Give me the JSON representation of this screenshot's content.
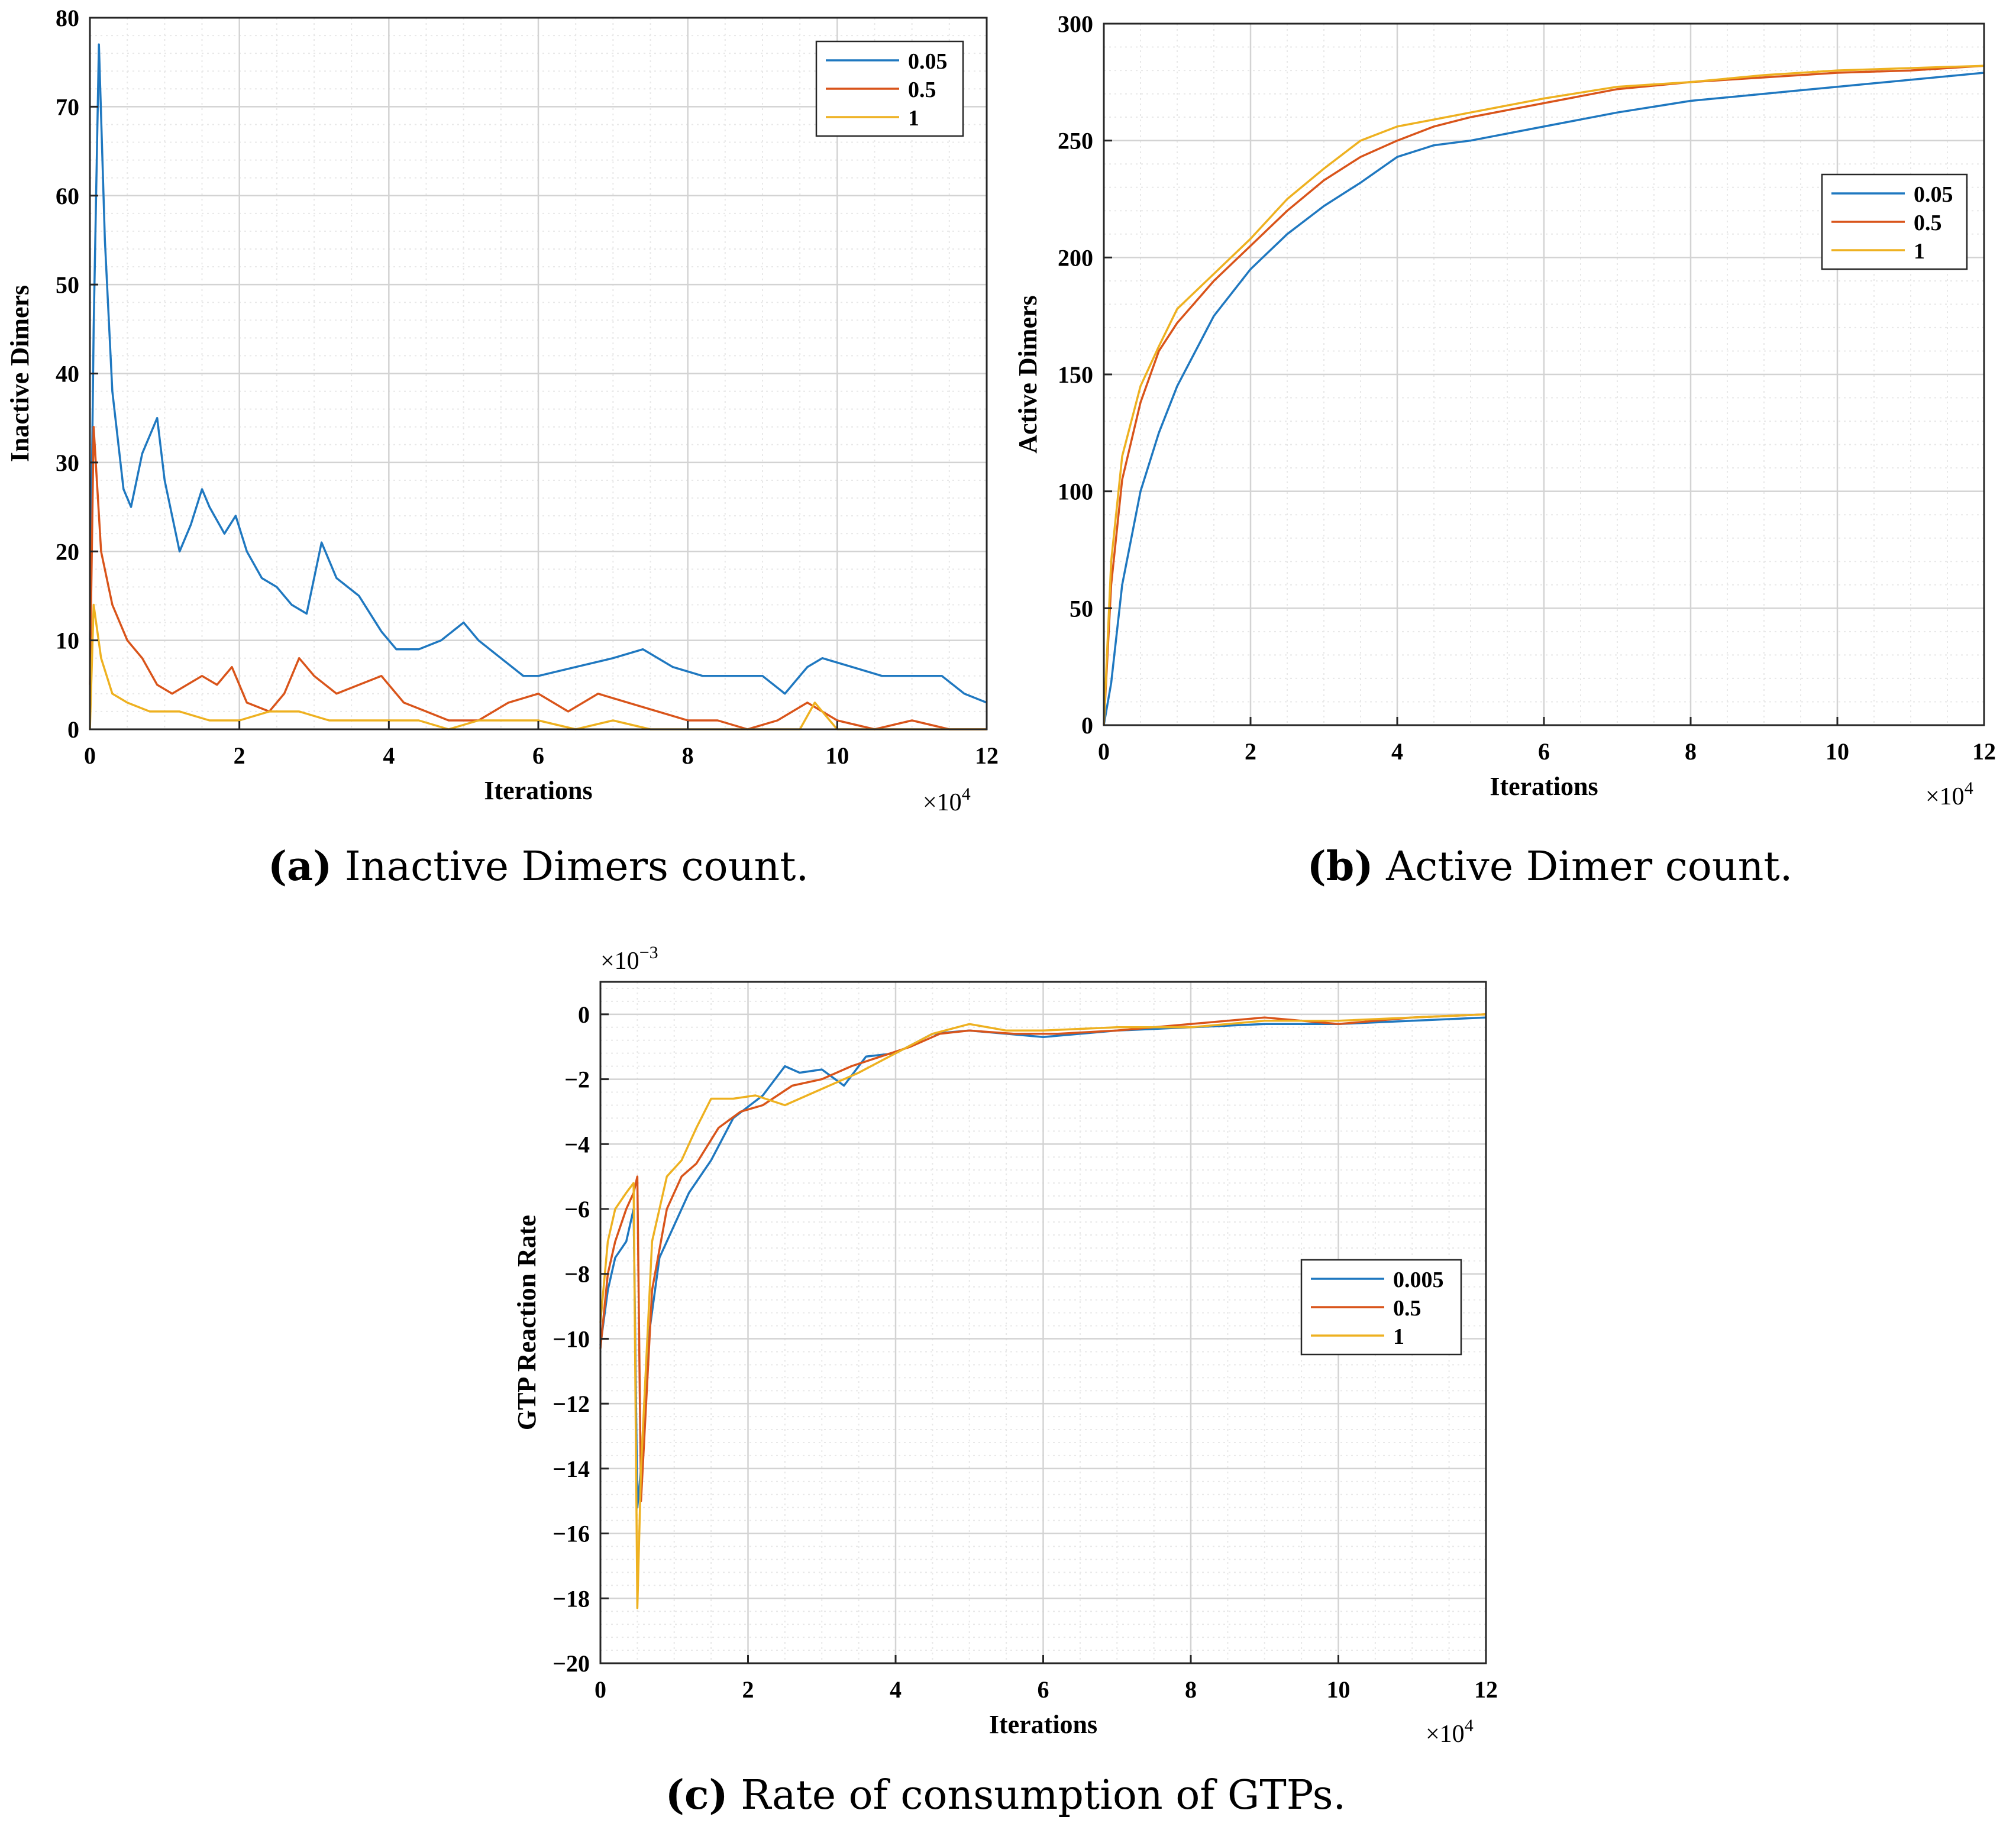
{
  "colors": {
    "series1": "#1f78c0",
    "series2": "#d9541a",
    "series3": "#eeb120",
    "grid_major": "#d3d3d3",
    "grid_minor": "#e8e8e8"
  },
  "captions": {
    "a": {
      "tag": "(a)",
      "text": "Inactive Dimers count."
    },
    "b": {
      "tag": "(b)",
      "text": "Active Dimer count."
    },
    "c": {
      "tag": "(c)",
      "text": "Rate of consumption of GTPs."
    }
  },
  "chart_data": [
    {
      "id": "a",
      "type": "line",
      "xlabel": "Iterations",
      "ylabel": "Inactive Dimers",
      "xlim": [
        0,
        12
      ],
      "ylim": [
        0,
        80
      ],
      "xticks": [
        0,
        2,
        4,
        6,
        8,
        10,
        12
      ],
      "yticks": [
        0,
        10,
        20,
        30,
        40,
        50,
        60,
        70,
        80
      ],
      "x_exponent": "4",
      "legend_position": "top-right",
      "grid": true,
      "series": [
        {
          "name": "0.05",
          "x": [
            0,
            0.05,
            0.12,
            0.2,
            0.3,
            0.45,
            0.55,
            0.7,
            0.9,
            1.0,
            1.2,
            1.35,
            1.5,
            1.6,
            1.8,
            1.95,
            2.1,
            2.3,
            2.5,
            2.7,
            2.9,
            3.1,
            3.3,
            3.6,
            3.9,
            4.1,
            4.4,
            4.7,
            5.0,
            5.2,
            5.5,
            5.8,
            6.0,
            6.5,
            7.0,
            7.4,
            7.8,
            8.2,
            8.6,
            9.0,
            9.3,
            9.6,
            9.8,
            10.2,
            10.6,
            11.0,
            11.4,
            11.7,
            12.0
          ],
          "values": [
            10,
            45,
            77,
            55,
            38,
            27,
            25,
            31,
            35,
            28,
            20,
            23,
            27,
            25,
            22,
            24,
            20,
            17,
            16,
            14,
            13,
            21,
            17,
            15,
            11,
            9,
            9,
            10,
            12,
            10,
            8,
            6,
            6,
            7,
            8,
            9,
            7,
            6,
            6,
            6,
            4,
            7,
            8,
            7,
            6,
            6,
            6,
            4,
            3
          ]
        },
        {
          "name": "0.5",
          "x": [
            0,
            0.05,
            0.15,
            0.3,
            0.5,
            0.7,
            0.9,
            1.1,
            1.3,
            1.5,
            1.7,
            1.9,
            2.1,
            2.4,
            2.6,
            2.8,
            3.0,
            3.3,
            3.6,
            3.9,
            4.2,
            4.5,
            4.8,
            5.2,
            5.6,
            6.0,
            6.4,
            6.8,
            7.2,
            7.6,
            8.0,
            8.4,
            8.8,
            9.2,
            9.6,
            10.0,
            10.5,
            11.0,
            11.5,
            12.0
          ],
          "values": [
            5,
            34,
            20,
            14,
            10,
            8,
            5,
            4,
            5,
            6,
            5,
            7,
            3,
            2,
            4,
            8,
            6,
            4,
            5,
            6,
            3,
            2,
            1,
            1,
            3,
            4,
            2,
            4,
            3,
            2,
            1,
            1,
            0,
            1,
            3,
            1,
            0,
            1,
            0,
            0
          ]
        },
        {
          "name": "1",
          "x": [
            0,
            0.05,
            0.15,
            0.3,
            0.5,
            0.8,
            1.2,
            1.6,
            2.0,
            2.4,
            2.8,
            3.2,
            3.6,
            4.0,
            4.4,
            4.8,
            5.2,
            5.6,
            6.0,
            6.5,
            7.0,
            7.5,
            8.0,
            9.0,
            9.5,
            9.7,
            10.0,
            11.0,
            12.0
          ],
          "values": [
            0,
            14,
            8,
            4,
            3,
            2,
            2,
            1,
            1,
            2,
            2,
            1,
            1,
            1,
            1,
            0,
            1,
            1,
            1,
            0,
            1,
            0,
            0,
            0,
            0,
            3,
            0,
            0,
            0
          ]
        }
      ]
    },
    {
      "id": "b",
      "type": "line",
      "xlabel": "Iterations",
      "ylabel": "Active Dimers",
      "xlim": [
        0,
        12
      ],
      "ylim": [
        0,
        300
      ],
      "xticks": [
        0,
        2,
        4,
        6,
        8,
        10,
        12
      ],
      "yticks": [
        0,
        50,
        100,
        150,
        200,
        250,
        300
      ],
      "x_exponent": "4",
      "legend_position": "right",
      "grid": true,
      "series": [
        {
          "name": "0.05",
          "x": [
            0,
            0.1,
            0.25,
            0.5,
            0.75,
            1.0,
            1.5,
            2.0,
            2.5,
            3.0,
            3.5,
            4.0,
            4.5,
            5.0,
            6.0,
            7.0,
            8.0,
            9.0,
            10.0,
            11.0,
            12.0
          ],
          "values": [
            0,
            18,
            60,
            100,
            125,
            145,
            175,
            195,
            210,
            222,
            232,
            243,
            248,
            250,
            256,
            262,
            267,
            270,
            273,
            276,
            279
          ]
        },
        {
          "name": "0.5",
          "x": [
            0,
            0.1,
            0.25,
            0.5,
            0.75,
            1.0,
            1.5,
            2.0,
            2.5,
            3.0,
            3.5,
            4.0,
            4.5,
            5.0,
            6.0,
            7.0,
            8.0,
            9.0,
            10.0,
            11.0,
            12.0
          ],
          "values": [
            0,
            60,
            105,
            138,
            160,
            172,
            190,
            205,
            220,
            233,
            243,
            250,
            256,
            260,
            266,
            272,
            275,
            277,
            279,
            280,
            282
          ]
        },
        {
          "name": "1",
          "x": [
            0,
            0.1,
            0.25,
            0.5,
            0.75,
            1.0,
            1.5,
            2.0,
            2.5,
            3.0,
            3.5,
            4.0,
            4.5,
            5.0,
            6.0,
            7.0,
            8.0,
            9.0,
            10.0,
            11.0,
            12.0
          ],
          "values": [
            0,
            70,
            115,
            145,
            162,
            178,
            193,
            208,
            225,
            238,
            250,
            256,
            259,
            262,
            268,
            273,
            275,
            278,
            280,
            281,
            282
          ]
        }
      ]
    },
    {
      "id": "c",
      "type": "line",
      "xlabel": "Iterations",
      "ylabel": "GTP Reaction Rate",
      "xlim": [
        0,
        12
      ],
      "ylim": [
        -20,
        1
      ],
      "xticks": [
        0,
        2,
        4,
        6,
        8,
        10,
        12
      ],
      "yticks": [
        0,
        -2,
        -4,
        -6,
        -8,
        -10,
        -12,
        -14,
        -16,
        -18,
        -20
      ],
      "x_exponent": "4",
      "y_exponent": "-3",
      "legend_position": "right",
      "grid": true,
      "series": [
        {
          "name": "0.005",
          "x": [
            0,
            0.1,
            0.2,
            0.35,
            0.45,
            0.5,
            0.55,
            0.65,
            0.8,
            1.0,
            1.2,
            1.5,
            1.8,
            2.2,
            2.5,
            2.7,
            3.0,
            3.3,
            3.6,
            4.0,
            4.5,
            5.0,
            5.5,
            6.0,
            7.0,
            8.0,
            9.0,
            10.0,
            11.0,
            12.0
          ],
          "values": [
            -10.2,
            -8.5,
            -7.5,
            -7.0,
            -6.0,
            -15.2,
            -14.0,
            -10.0,
            -7.5,
            -6.5,
            -5.5,
            -4.5,
            -3.2,
            -2.5,
            -1.6,
            -1.8,
            -1.7,
            -2.2,
            -1.3,
            -1.2,
            -0.6,
            -0.5,
            -0.6,
            -0.7,
            -0.5,
            -0.4,
            -0.3,
            -0.3,
            -0.2,
            -0.1
          ]
        },
        {
          "name": "0.5",
          "x": [
            0,
            0.1,
            0.2,
            0.35,
            0.45,
            0.5,
            0.55,
            0.7,
            0.9,
            1.1,
            1.3,
            1.6,
            1.9,
            2.2,
            2.6,
            3.0,
            3.4,
            3.8,
            4.2,
            4.6,
            5.0,
            5.6,
            6.2,
            7.0,
            8.0,
            9.0,
            10.0,
            11.0,
            12.0
          ],
          "values": [
            -10.3,
            -8.0,
            -7.0,
            -6.0,
            -5.5,
            -5.0,
            -15.0,
            -8.5,
            -6.0,
            -5.0,
            -4.6,
            -3.5,
            -3.0,
            -2.8,
            -2.2,
            -2.0,
            -1.6,
            -1.3,
            -1.0,
            -0.6,
            -0.5,
            -0.6,
            -0.6,
            -0.5,
            -0.3,
            -0.1,
            -0.3,
            -0.1,
            0.0
          ]
        },
        {
          "name": "1",
          "x": [
            0,
            0.1,
            0.2,
            0.35,
            0.45,
            0.5,
            0.55,
            0.7,
            0.9,
            1.1,
            1.3,
            1.5,
            1.8,
            2.1,
            2.5,
            3.0,
            3.5,
            4.0,
            4.5,
            5.0,
            5.5,
            6.0,
            7.0,
            8.0,
            9.0,
            10.0,
            11.0,
            12.0
          ],
          "values": [
            -9.5,
            -7.0,
            -6.0,
            -5.5,
            -5.2,
            -18.3,
            -14.0,
            -7.0,
            -5.0,
            -4.5,
            -3.5,
            -2.6,
            -2.6,
            -2.5,
            -2.8,
            -2.3,
            -1.8,
            -1.2,
            -0.6,
            -0.3,
            -0.5,
            -0.5,
            -0.4,
            -0.4,
            -0.2,
            -0.2,
            -0.1,
            0.0
          ]
        }
      ]
    }
  ]
}
